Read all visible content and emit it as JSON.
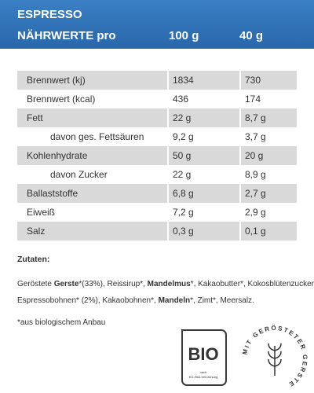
{
  "header": {
    "product": "ESPRESSO",
    "label": "NÄHRWERTE pro",
    "columns": [
      "100 g",
      "40 g"
    ]
  },
  "table": {
    "rows": [
      [
        "Brennwert (kj)",
        "1834",
        "730"
      ],
      [
        "Brennwert (kcal)",
        "436",
        "174"
      ],
      [
        "Fett",
        "22 g",
        "8,7 g"
      ],
      [
        "davon ges. Fettsäuren",
        "9,2 g",
        "3,7 g"
      ],
      [
        "Kohlenhydrate",
        "50 g",
        "20  g"
      ],
      [
        "davon Zucker",
        "22 g",
        "8,9 g"
      ],
      [
        "Ballaststoffe",
        "6,8 g",
        "2,7 g"
      ],
      [
        "Eiweiß",
        "7,2 g",
        "2,9 g"
      ],
      [
        "Salz",
        "0,3 g",
        "0,1 g"
      ]
    ],
    "indented": [
      false,
      false,
      false,
      true,
      false,
      true,
      false,
      false,
      false
    ]
  },
  "ingredients": {
    "title": "Zutaten:",
    "lines": [
      [
        {
          "text": "Geröstete ",
          "bold": false
        },
        {
          "text": "Gerste",
          "bold": true
        },
        {
          "text": "*(33%), Reissirup*, ",
          "bold": false
        },
        {
          "text": "Mandelmus",
          "bold": true
        },
        {
          "text": "*, Kakaobutter*, Kokosblütenzucker*,",
          "bold": false
        }
      ],
      [
        {
          "text": "Espressobohnen* (2%), Kakaobohnen*, ",
          "bold": false
        },
        {
          "text": "Mandeln",
          "bold": true
        },
        {
          "text": "*, Zimt*, Meersalz.",
          "bold": false
        }
      ]
    ],
    "footnote": "*aus biologischem Anbau"
  },
  "logos": {
    "bio": "BIO",
    "bio_note_1": "nach",
    "bio_note_2": "EG-Öko-Verordnung",
    "stamp": "MIT GERÖSTETER GERSTE"
  }
}
